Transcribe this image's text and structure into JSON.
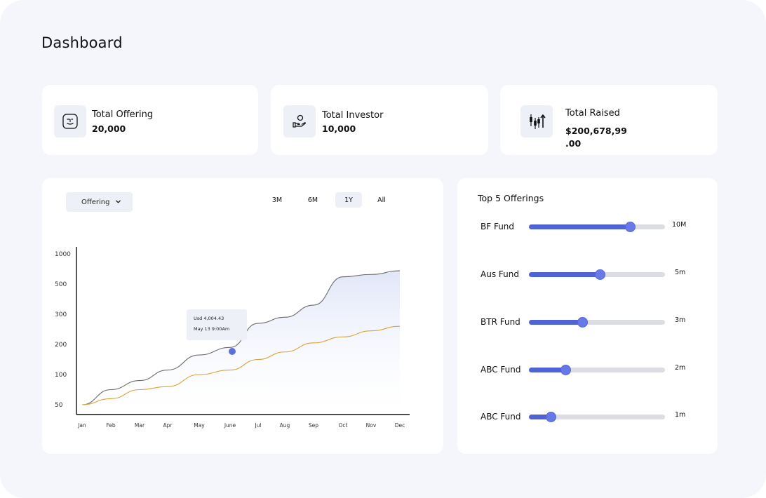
{
  "page": {
    "title": "Dashboard"
  },
  "stats": [
    {
      "label": "Total Offering",
      "value": "20,000",
      "icon": "face-icon"
    },
    {
      "label": "Total Investor",
      "value": "10,000",
      "icon": "hand-person-icon"
    },
    {
      "label": "Total Raised",
      "value_line1": "$200,678,99",
      "value_line2": ".00",
      "icon": "candlestick-icon"
    }
  ],
  "chart_panel": {
    "dropdown_label": "Offering",
    "ranges": [
      "3M",
      "6M",
      "1Y",
      "All"
    ],
    "active_range": "1Y",
    "tooltip": {
      "line1": "Usd 4,004.43",
      "line2": "May 13 9:00Am"
    }
  },
  "chart_data": {
    "type": "line",
    "x": [
      "Jan",
      "Feb",
      "Mar",
      "Apr",
      "May",
      "June",
      "Jul",
      "Aug",
      "Sep",
      "Oct",
      "Nov",
      "Dec"
    ],
    "y_ticks": [
      "1000",
      "500",
      "300",
      "200",
      "100",
      "50"
    ],
    "series": [
      {
        "color": "#6b6b6b",
        "values": [
          50,
          75,
          90,
          115,
          165,
          190,
          270,
          290,
          360,
          620,
          660,
          720
        ]
      },
      {
        "color": "#d9a23a",
        "values": [
          50,
          60,
          75,
          80,
          100,
          115,
          150,
          175,
          205,
          225,
          245,
          260
        ]
      }
    ]
  },
  "top5": {
    "title": "Top 5 Offerings",
    "items": [
      {
        "name": "BF Fund",
        "value": "10M",
        "fraction": 0.74
      },
      {
        "name": "Aus Fund",
        "value": "5m",
        "fraction": 0.52
      },
      {
        "name": "BTR Fund",
        "value": "3m",
        "fraction": 0.39
      },
      {
        "name": "ABC Fund",
        "value": "2m",
        "fraction": 0.27
      },
      {
        "name": "ABC Fund",
        "value": "1m",
        "fraction": 0.16
      }
    ]
  },
  "colors": {
    "background": "#f4f6fc",
    "card": "#ffffff",
    "accent": "#4f63d2",
    "series_gray": "#6b6b6b",
    "series_orange": "#d9a23a"
  }
}
